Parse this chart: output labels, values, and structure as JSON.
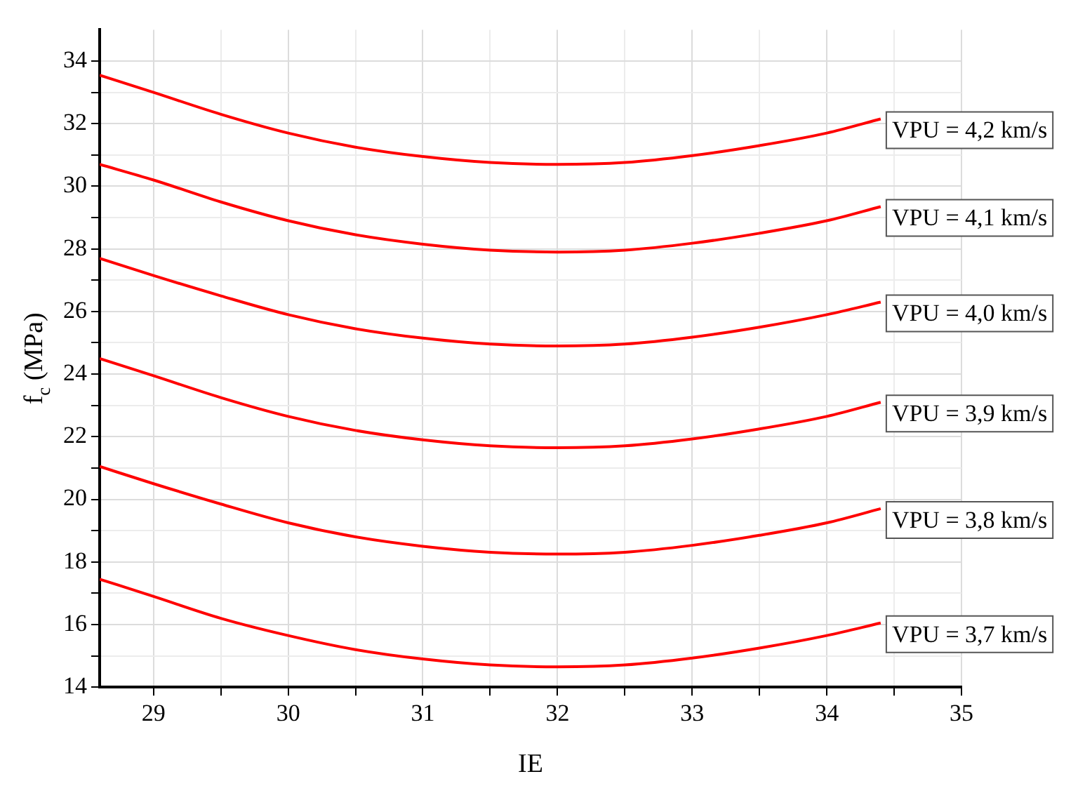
{
  "chart_data": {
    "type": "line",
    "xlabel": "IE",
    "ylabel": "f$_{c}$ (MPa)",
    "x": [
      28.6,
      29,
      29.5,
      30,
      30.5,
      31,
      31.5,
      32,
      32.5,
      33,
      33.5,
      34,
      34.4
    ],
    "series": [
      {
        "name": "VPU = 4,2 km/s",
        "color": "#ff0000",
        "values": [
          33.55,
          33.0,
          32.3,
          31.7,
          31.25,
          30.95,
          30.76,
          30.7,
          30.76,
          30.98,
          31.3,
          31.7,
          32.15
        ]
      },
      {
        "name": "VPU = 4,1 km/s",
        "color": "#ff0000",
        "values": [
          30.7,
          30.2,
          29.5,
          28.9,
          28.45,
          28.15,
          27.96,
          27.9,
          27.96,
          28.18,
          28.5,
          28.9,
          29.35
        ]
      },
      {
        "name": "VPU = 4,0 km/s",
        "color": "#ff0000",
        "values": [
          27.7,
          27.15,
          26.5,
          25.9,
          25.45,
          25.15,
          24.96,
          24.9,
          24.96,
          25.18,
          25.5,
          25.9,
          26.3
        ]
      },
      {
        "name": "VPU = 3,9 km/s",
        "color": "#ff0000",
        "values": [
          24.5,
          23.95,
          23.25,
          22.65,
          22.2,
          21.9,
          21.71,
          21.65,
          21.71,
          21.93,
          22.25,
          22.65,
          23.1
        ]
      },
      {
        "name": "VPU = 3,8 km/s",
        "color": "#ff0000",
        "values": [
          21.05,
          20.5,
          19.85,
          19.25,
          18.8,
          18.5,
          18.31,
          18.25,
          18.31,
          18.53,
          18.85,
          19.25,
          19.7
        ]
      },
      {
        "name": "VPU = 3,7 km/s",
        "color": "#ff0000",
        "values": [
          17.45,
          16.9,
          16.2,
          15.65,
          15.2,
          14.9,
          14.71,
          14.65,
          14.71,
          14.93,
          15.25,
          15.65,
          16.05
        ]
      }
    ],
    "xlim": [
      28.6,
      35
    ],
    "ylim": [
      14,
      35
    ],
    "xticks": [
      29,
      {
        "value": 29.5,
        "label": null
      },
      30,
      {
        "value": 30.5,
        "label": null
      },
      31,
      {
        "value": 31.5,
        "label": null
      },
      32,
      {
        "value": 32.5,
        "label": null
      },
      33,
      {
        "value": 33.5,
        "label": null
      },
      34,
      {
        "value": 34.5,
        "label": null
      },
      35
    ],
    "yticks": [
      14,
      {
        "value": 15,
        "label": null
      },
      16,
      {
        "value": 17,
        "label": null
      },
      18,
      {
        "value": 19,
        "label": null
      },
      20,
      {
        "value": 21,
        "label": null
      },
      22,
      {
        "value": 23,
        "label": null
      },
      24,
      {
        "value": 25,
        "label": null
      },
      26,
      {
        "value": 27,
        "label": null
      },
      28,
      {
        "value": 29,
        "label": null
      },
      30,
      {
        "value": 31,
        "label": null
      },
      32,
      {
        "value": 33,
        "label": null
      },
      34
    ],
    "grid": true,
    "marker": "none",
    "line_style": "solid"
  }
}
